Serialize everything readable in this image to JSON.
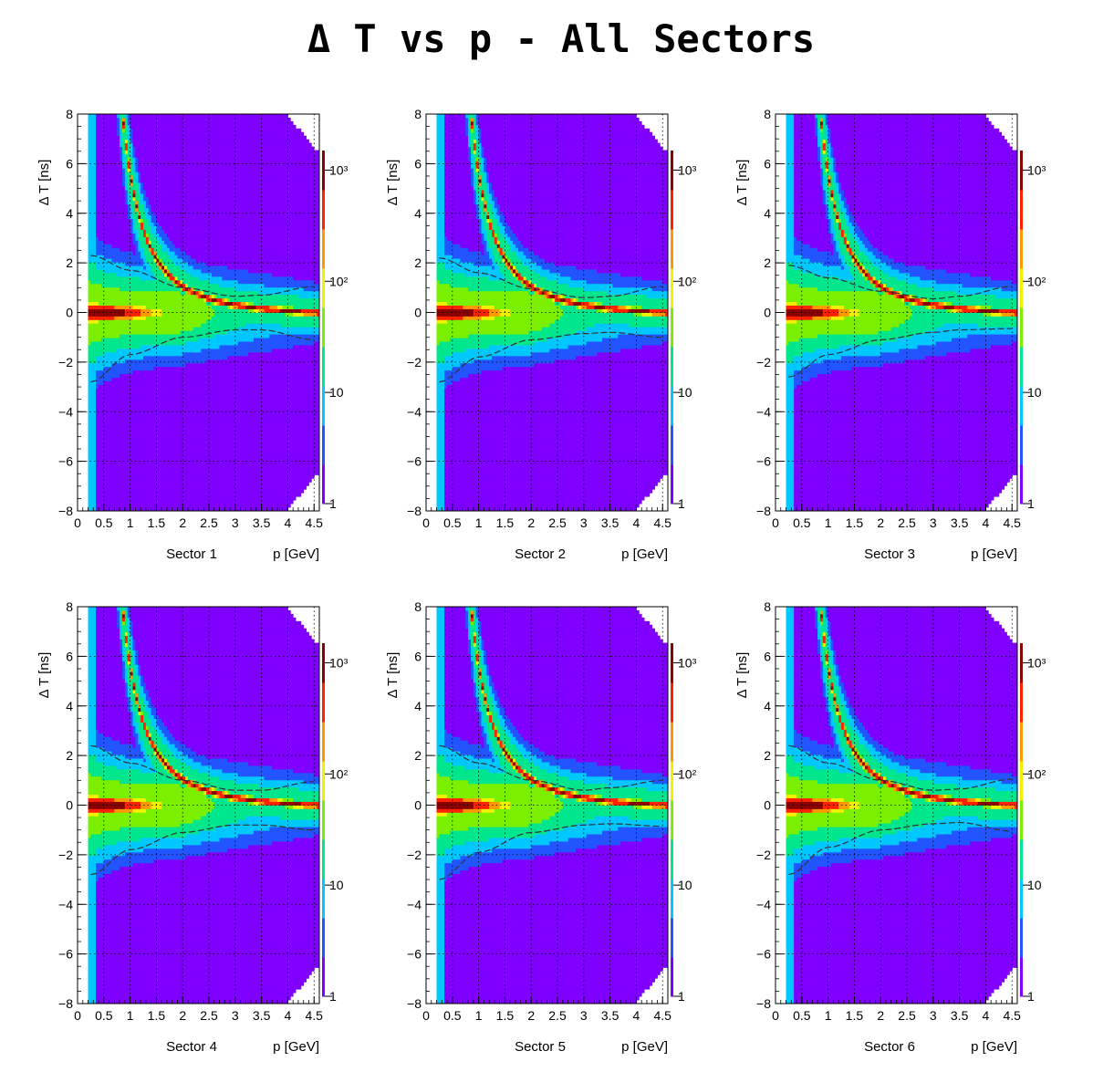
{
  "title": "Δ T vs p - All Sectors",
  "colors": {
    "palette": [
      "#ffffff",
      "#7f00ff",
      "#2255ff",
      "#00c8ff",
      "#00e68c",
      "#7af000",
      "#f0f000",
      "#ff9900",
      "#ff2200",
      "#8b0000"
    ],
    "curve": "#333333",
    "grid": "#000000"
  },
  "chart_data": [
    {
      "type": "heatmap",
      "sector_label": "Sector 1",
      "xlabel": "p [GeV]",
      "ylabel": "Δ T    [ns]",
      "xlim": [
        0,
        4.6
      ],
      "ylim": [
        -8,
        8
      ],
      "xticks": [
        "0",
        "0.5",
        "1",
        "1.5",
        "2",
        "2.5",
        "3",
        "3.5",
        "4",
        "4.5"
      ],
      "yticks": [
        "−8",
        "−6",
        "−4",
        "−2",
        "0",
        "2",
        "4",
        "6",
        "8"
      ],
      "zscale": "log",
      "zlim": [
        1,
        1500
      ],
      "zticks": [
        "1",
        "10",
        "10²",
        "10³"
      ],
      "grid": true,
      "cut_upper": [
        [
          0.25,
          2.3
        ],
        [
          1.0,
          1.7
        ],
        [
          2.0,
          1.0
        ],
        [
          3.0,
          0.65
        ],
        [
          3.5,
          0.7
        ],
        [
          4.5,
          1.05
        ]
      ],
      "cut_lower": [
        [
          0.25,
          -2.8
        ],
        [
          1.0,
          -1.7
        ],
        [
          2.0,
          -1.0
        ],
        [
          3.0,
          -0.7
        ],
        [
          3.5,
          -0.7
        ],
        [
          4.5,
          -1.1
        ]
      ]
    },
    {
      "type": "heatmap",
      "sector_label": "Sector 2",
      "xlabel": "p [GeV]",
      "ylabel": "Δ T    [ns]",
      "xlim": [
        0,
        4.6
      ],
      "ylim": [
        -8,
        8
      ],
      "xticks": [
        "0",
        "0.5",
        "1",
        "1.5",
        "2",
        "2.5",
        "3",
        "3.5",
        "4",
        "4.5"
      ],
      "yticks": [
        "−8",
        "−6",
        "−4",
        "−2",
        "0",
        "2",
        "4",
        "6",
        "8"
      ],
      "zscale": "log",
      "zlim": [
        1,
        1500
      ],
      "zticks": [
        "1",
        "10",
        "10²",
        "10³"
      ],
      "grid": true,
      "cut_upper": [
        [
          0.25,
          2.2
        ],
        [
          1.0,
          1.6
        ],
        [
          2.0,
          0.95
        ],
        [
          3.0,
          0.6
        ],
        [
          3.5,
          0.65
        ],
        [
          4.5,
          1.05
        ]
      ],
      "cut_lower": [
        [
          0.25,
          -2.8
        ],
        [
          1.0,
          -1.8
        ],
        [
          2.0,
          -1.1
        ],
        [
          3.0,
          -0.85
        ],
        [
          3.5,
          -0.8
        ],
        [
          4.5,
          -1.0
        ]
      ]
    },
    {
      "type": "heatmap",
      "sector_label": "Sector 3",
      "xlabel": "p [GeV]",
      "ylabel": "Δ T    [ns]",
      "xlim": [
        0,
        4.6
      ],
      "ylim": [
        -8,
        8
      ],
      "xticks": [
        "0",
        "0.5",
        "1",
        "1.5",
        "2",
        "2.5",
        "3",
        "3.5",
        "4",
        "4.5"
      ],
      "yticks": [
        "−8",
        "−6",
        "−4",
        "−2",
        "0",
        "2",
        "4",
        "6",
        "8"
      ],
      "zscale": "log",
      "zlim": [
        1,
        1500
      ],
      "zticks": [
        "1",
        "10",
        "10²",
        "10³"
      ],
      "grid": true,
      "cut_upper": [
        [
          0.25,
          1.9
        ],
        [
          1.0,
          1.4
        ],
        [
          2.0,
          0.85
        ],
        [
          3.0,
          0.55
        ],
        [
          3.5,
          0.65
        ],
        [
          4.5,
          1.05
        ]
      ],
      "cut_lower": [
        [
          0.25,
          -2.6
        ],
        [
          1.0,
          -1.7
        ],
        [
          2.0,
          -1.1
        ],
        [
          3.0,
          -0.8
        ],
        [
          3.5,
          -0.7
        ],
        [
          4.5,
          -0.65
        ]
      ]
    },
    {
      "type": "heatmap",
      "sector_label": "Sector 4",
      "xlabel": "p [GeV]",
      "ylabel": "Δ T    [ns]",
      "xlim": [
        0,
        4.6
      ],
      "ylim": [
        -8,
        8
      ],
      "xticks": [
        "0",
        "0.5",
        "1",
        "1.5",
        "2",
        "2.5",
        "3",
        "3.5",
        "4",
        "4.5"
      ],
      "yticks": [
        "−8",
        "−6",
        "−4",
        "−2",
        "0",
        "2",
        "4",
        "6",
        "8"
      ],
      "zscale": "log",
      "zlim": [
        1,
        1500
      ],
      "zticks": [
        "1",
        "10",
        "10²",
        "10³"
      ],
      "grid": true,
      "cut_upper": [
        [
          0.25,
          2.4
        ],
        [
          1.0,
          1.7
        ],
        [
          2.0,
          1.0
        ],
        [
          3.0,
          0.6
        ],
        [
          3.5,
          0.6
        ],
        [
          4.5,
          0.95
        ]
      ],
      "cut_lower": [
        [
          0.25,
          -2.8
        ],
        [
          1.0,
          -1.8
        ],
        [
          2.0,
          -1.1
        ],
        [
          3.0,
          -0.8
        ],
        [
          3.5,
          -0.8
        ],
        [
          4.5,
          -1.0
        ]
      ]
    },
    {
      "type": "heatmap",
      "sector_label": "Sector 5",
      "xlabel": "p [GeV]",
      "ylabel": "Δ T    [ns]",
      "xlim": [
        0,
        4.6
      ],
      "ylim": [
        -8,
        8
      ],
      "xticks": [
        "0",
        "0.5",
        "1",
        "1.5",
        "2",
        "2.5",
        "3",
        "3.5",
        "4",
        "4.5"
      ],
      "yticks": [
        "−8",
        "−6",
        "−4",
        "−2",
        "0",
        "2",
        "4",
        "6",
        "8"
      ],
      "zscale": "log",
      "zlim": [
        1,
        1500
      ],
      "zticks": [
        "1",
        "10",
        "10²",
        "10³"
      ],
      "grid": true,
      "cut_upper": [
        [
          0.25,
          2.4
        ],
        [
          1.0,
          1.7
        ],
        [
          2.0,
          1.0
        ],
        [
          3.0,
          0.6
        ],
        [
          3.5,
          0.7
        ],
        [
          4.5,
          1.0
        ]
      ],
      "cut_lower": [
        [
          0.25,
          -3.0
        ],
        [
          1.0,
          -1.9
        ],
        [
          2.0,
          -1.1
        ],
        [
          3.0,
          -0.8
        ],
        [
          3.5,
          -0.75
        ],
        [
          4.5,
          -0.85
        ]
      ]
    },
    {
      "type": "heatmap",
      "sector_label": "Sector 6",
      "xlabel": "p [GeV]",
      "ylabel": "Δ T    [ns]",
      "xlim": [
        0,
        4.6
      ],
      "ylim": [
        -8,
        8
      ],
      "xticks": [
        "0",
        "0.5",
        "1",
        "1.5",
        "2",
        "2.5",
        "3",
        "3.5",
        "4",
        "4.5"
      ],
      "yticks": [
        "−8",
        "−6",
        "−4",
        "−2",
        "0",
        "2",
        "4",
        "6",
        "8"
      ],
      "zscale": "log",
      "zlim": [
        1,
        1500
      ],
      "zticks": [
        "1",
        "10",
        "10²",
        "10³"
      ],
      "grid": true,
      "cut_upper": [
        [
          0.25,
          2.4
        ],
        [
          1.0,
          1.7
        ],
        [
          2.0,
          1.0
        ],
        [
          3.0,
          0.6
        ],
        [
          3.5,
          0.65
        ],
        [
          4.5,
          1.05
        ]
      ],
      "cut_lower": [
        [
          0.25,
          -2.8
        ],
        [
          1.0,
          -1.7
        ],
        [
          2.0,
          -1.0
        ],
        [
          3.0,
          -0.75
        ],
        [
          3.5,
          -0.7
        ],
        [
          4.5,
          -1.05
        ]
      ]
    }
  ]
}
